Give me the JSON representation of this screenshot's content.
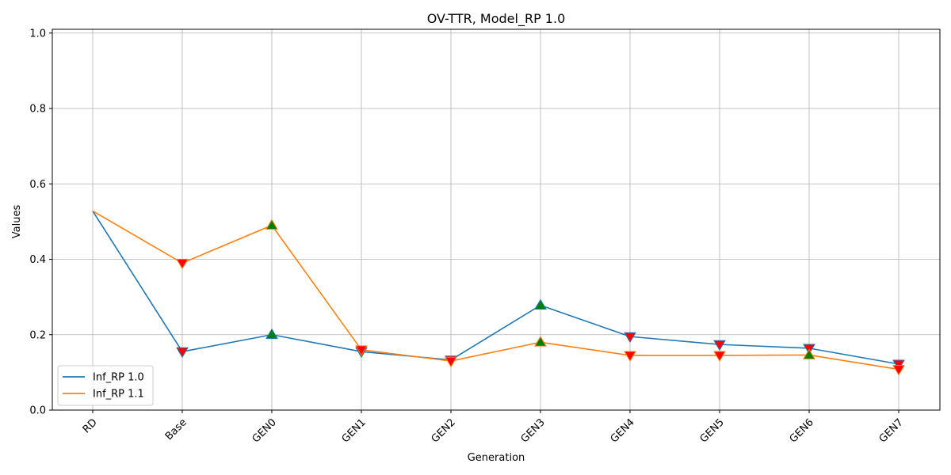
{
  "chart_data": {
    "type": "line",
    "title": "OV-TTR, Model_RP 1.0",
    "xlabel": "Generation",
    "ylabel": "Values",
    "ylim": [
      0,
      1.0
    ],
    "yticks": [
      0.0,
      0.2,
      0.4,
      0.6,
      0.8,
      1.0
    ],
    "ytick_labels": [
      "0.0",
      "0.2",
      "0.4",
      "0.6",
      "0.8",
      "1.0"
    ],
    "categories": [
      "RD",
      "Base",
      "GEN0",
      "GEN1",
      "GEN2",
      "GEN3",
      "GEN4",
      "GEN5",
      "GEN6",
      "GEN7"
    ],
    "grid": true,
    "legend_position": "lower-left",
    "series": [
      {
        "name": "Inf_RP 1.0",
        "color": "#1f77b4",
        "values": [
          0.528,
          0.155,
          0.2,
          0.155,
          0.133,
          0.278,
          0.195,
          0.174,
          0.164,
          0.122
        ],
        "markers": [
          null,
          "down",
          "up",
          "down",
          "down",
          "up",
          "down",
          "down",
          "down",
          "down"
        ]
      },
      {
        "name": "Inf_RP 1.1",
        "color": "#ff7f0e",
        "values": [
          0.528,
          0.39,
          0.49,
          0.16,
          0.13,
          0.18,
          0.145,
          0.145,
          0.146,
          0.108
        ],
        "markers": [
          null,
          "down",
          "up",
          "down",
          "down",
          "up",
          "down",
          "down",
          "up",
          "down"
        ]
      }
    ],
    "marker_colors": {
      "up": "#008000",
      "down": "#ff0000"
    }
  }
}
